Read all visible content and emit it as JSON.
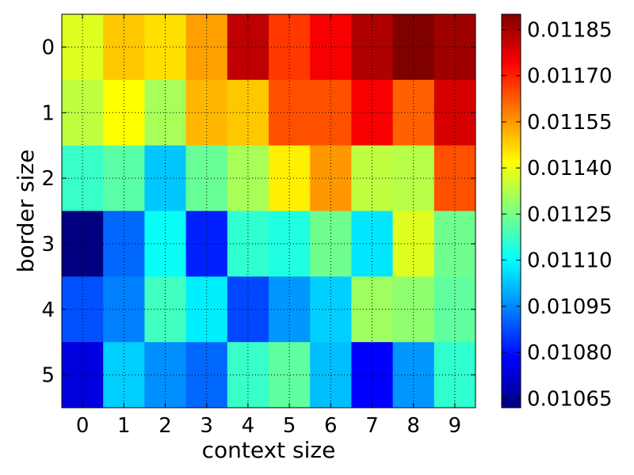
{
  "chart_data": {
    "type": "heatmap",
    "title": "",
    "xlabel": "context size",
    "ylabel": "border size",
    "x": [
      0,
      1,
      2,
      3,
      4,
      5,
      6,
      7,
      8,
      9
    ],
    "y": [
      0,
      1,
      2,
      3,
      4,
      5
    ],
    "values": [
      [
        0.01138,
        0.01149,
        0.01146,
        0.01154,
        0.01182,
        0.01167,
        0.01175,
        0.01184,
        0.0119,
        0.01186
      ],
      [
        0.01134,
        0.01142,
        0.01131,
        0.01151,
        0.01149,
        0.01164,
        0.01164,
        0.01175,
        0.01162,
        0.01179
      ],
      [
        0.01117,
        0.01121,
        0.01103,
        0.01123,
        0.01131,
        0.01144,
        0.01155,
        0.01134,
        0.01133,
        0.01164
      ],
      [
        0.01062,
        0.01091,
        0.01111,
        0.01082,
        0.01116,
        0.01114,
        0.01124,
        0.01107,
        0.01138,
        0.01124
      ],
      [
        0.01088,
        0.01094,
        0.01118,
        0.01108,
        0.01087,
        0.01097,
        0.01104,
        0.0113,
        0.01128,
        0.01122
      ],
      [
        0.01074,
        0.01104,
        0.01096,
        0.01091,
        0.01117,
        0.01122,
        0.01102,
        0.01078,
        0.01097,
        0.01116
      ]
    ],
    "color_range": [
      0.01062,
      0.0119
    ],
    "colormap": "jet",
    "colorbar_ticks": [
      "0.01065",
      "0.01080",
      "0.01095",
      "0.01110",
      "0.01125",
      "0.01140",
      "0.01155",
      "0.01170",
      "0.01185"
    ],
    "colorbar_tick_values": [
      0.01065,
      0.0108,
      0.01095,
      0.0111,
      0.01125,
      0.0114,
      0.01155,
      0.0117,
      0.01185
    ],
    "grid": true,
    "grid_style": "dotted",
    "legend": "colorbar-right"
  }
}
